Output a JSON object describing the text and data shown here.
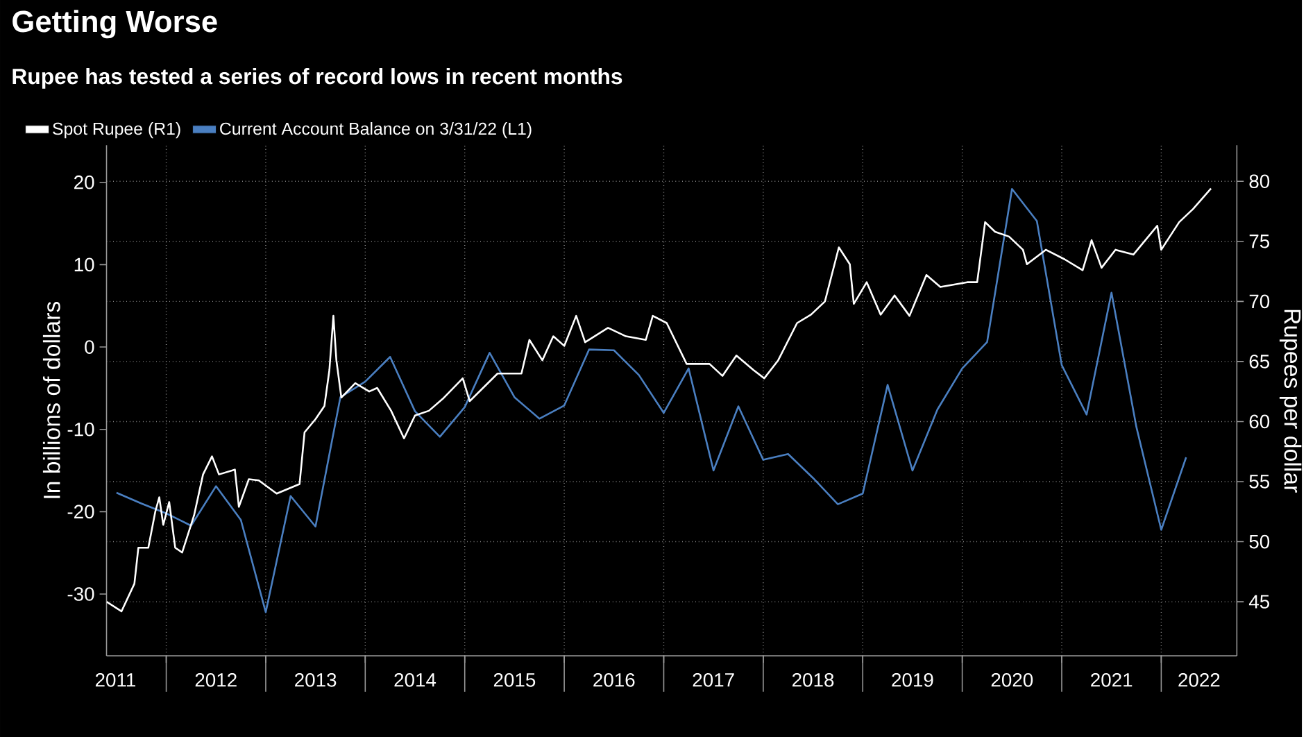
{
  "chart_data": {
    "type": "line",
    "title": "Getting Worse",
    "subtitle": "Rupee has tested a series of record lows in recent months",
    "ylabel": "In billions of dollars",
    "y2label": "Rupees per dollar",
    "xlim": [
      2011.4,
      2022.76
    ],
    "xticks": [
      {
        "value": 2011.49,
        "label": "2011"
      },
      {
        "value": 2012,
        "label": null
      },
      {
        "value": 2012.5,
        "label": "2012"
      },
      {
        "value": 2013,
        "label": null
      },
      {
        "value": 2013.5,
        "label": "2013"
      },
      {
        "value": 2014,
        "label": null
      },
      {
        "value": 2014.5,
        "label": "2014"
      },
      {
        "value": 2015,
        "label": null
      },
      {
        "value": 2015.5,
        "label": "2015"
      },
      {
        "value": 2016,
        "label": null
      },
      {
        "value": 2016.5,
        "label": "2016"
      },
      {
        "value": 2017,
        "label": null
      },
      {
        "value": 2017.5,
        "label": "2017"
      },
      {
        "value": 2018,
        "label": null
      },
      {
        "value": 2018.5,
        "label": "2018"
      },
      {
        "value": 2019,
        "label": null
      },
      {
        "value": 2019.5,
        "label": "2019"
      },
      {
        "value": 2020,
        "label": null
      },
      {
        "value": 2020.5,
        "label": "2020"
      },
      {
        "value": 2021,
        "label": null
      },
      {
        "value": 2021.5,
        "label": "2021"
      },
      {
        "value": 2022,
        "label": null
      },
      {
        "value": 2022.38,
        "label": "2022"
      }
    ],
    "ylim": [
      -37.5,
      24.5
    ],
    "yticks": [
      -30,
      -20,
      -10,
      0,
      10,
      20
    ],
    "y2lim": [
      40.5,
      83
    ],
    "y2ticks": [
      45,
      50,
      55,
      60,
      65,
      70,
      75,
      80
    ],
    "grid": true,
    "legend": "top left",
    "series": [
      {
        "name": "Spot Rupee (R1)",
        "color": "#ffffff",
        "axis": "y2",
        "x": [
          2011.4,
          2011.55,
          2011.68,
          2011.72,
          2011.82,
          2011.89,
          2011.93,
          2011.97,
          2012.03,
          2012.09,
          2012.16,
          2012.28,
          2012.37,
          2012.46,
          2012.53,
          2012.69,
          2012.73,
          2012.83,
          2012.93,
          2013.11,
          2013.34,
          2013.39,
          2013.5,
          2013.59,
          2013.64,
          2013.68,
          2013.71,
          2013.76,
          2013.9,
          2014.04,
          2014.12,
          2014.26,
          2014.39,
          2014.5,
          2014.64,
          2014.78,
          2014.98,
          2015.05,
          2015.33,
          2015.57,
          2015.65,
          2015.78,
          2015.89,
          2016.0,
          2016.12,
          2016.21,
          2016.44,
          2016.62,
          2016.82,
          2016.89,
          2017.03,
          2017.23,
          2017.46,
          2017.59,
          2017.73,
          2017.9,
          2018.01,
          2018.15,
          2018.34,
          2018.48,
          2018.62,
          2018.76,
          2018.87,
          2018.91,
          2019.04,
          2019.18,
          2019.32,
          2019.47,
          2019.64,
          2019.78,
          2020.05,
          2020.15,
          2020.23,
          2020.33,
          2020.47,
          2020.61,
          2020.65,
          2020.84,
          2021.03,
          2021.21,
          2021.3,
          2021.4,
          2021.54,
          2021.72,
          2021.96,
          2022.0,
          2022.18,
          2022.32,
          2022.5
        ],
        "values": [
          45.0,
          44.2,
          46.5,
          49.5,
          49.5,
          52.5,
          53.7,
          51.4,
          53.3,
          49.5,
          49.1,
          52.2,
          55.6,
          57.1,
          55.6,
          56.0,
          52.9,
          55.2,
          55.1,
          54.0,
          54.8,
          59.1,
          60.2,
          61.3,
          64.3,
          68.8,
          65.1,
          62.0,
          63.2,
          62.5,
          62.8,
          60.9,
          58.6,
          60.5,
          60.9,
          61.9,
          63.6,
          61.7,
          64.0,
          64.0,
          66.8,
          65.1,
          67.1,
          66.3,
          68.8,
          66.6,
          67.8,
          67.1,
          66.8,
          68.8,
          68.2,
          64.8,
          64.8,
          63.8,
          65.5,
          64.3,
          63.6,
          65.1,
          68.2,
          68.9,
          70.0,
          74.5,
          73.1,
          69.8,
          71.6,
          68.9,
          70.5,
          68.8,
          72.2,
          71.2,
          71.6,
          71.6,
          76.6,
          75.8,
          75.4,
          74.3,
          73.1,
          74.3,
          73.5,
          72.6,
          75.1,
          72.8,
          74.3,
          73.9,
          76.3,
          74.3,
          76.6,
          77.7,
          79.4
        ]
      },
      {
        "name": "Current Account Balance on 3/31/22 (L1)",
        "color": "#4a7fc1",
        "x": [
          2011.5,
          2011.75,
          2012.0,
          2012.25,
          2012.5,
          2012.75,
          2013.0,
          2013.25,
          2013.5,
          2013.75,
          2014.0,
          2014.25,
          2014.5,
          2014.75,
          2015.0,
          2015.25,
          2015.5,
          2015.75,
          2016.0,
          2016.25,
          2016.5,
          2016.75,
          2017.0,
          2017.25,
          2017.5,
          2017.75,
          2018.0,
          2018.25,
          2018.5,
          2018.75,
          2019.0,
          2019.25,
          2019.5,
          2019.75,
          2020.0,
          2020.25,
          2020.5,
          2020.75,
          2021.0,
          2021.25,
          2021.5,
          2021.75,
          2022.0,
          2022.25
        ],
        "values": [
          -17.7,
          -19.0,
          -20.2,
          -21.7,
          -16.9,
          -21.0,
          -32.2,
          -18.1,
          -21.8,
          -6.1,
          -4.2,
          -1.2,
          -7.8,
          -10.9,
          -7.3,
          -0.7,
          -6.1,
          -8.7,
          -7.1,
          -0.3,
          -0.4,
          -3.4,
          -8.0,
          -2.6,
          -15.0,
          -7.2,
          -13.7,
          -13.0,
          -15.9,
          -19.1,
          -17.8,
          -4.6,
          -15.0,
          -7.6,
          -2.6,
          0.6,
          19.2,
          15.3,
          -2.2,
          -8.2,
          6.6,
          -9.7,
          -22.2,
          -13.4
        ]
      }
    ]
  }
}
